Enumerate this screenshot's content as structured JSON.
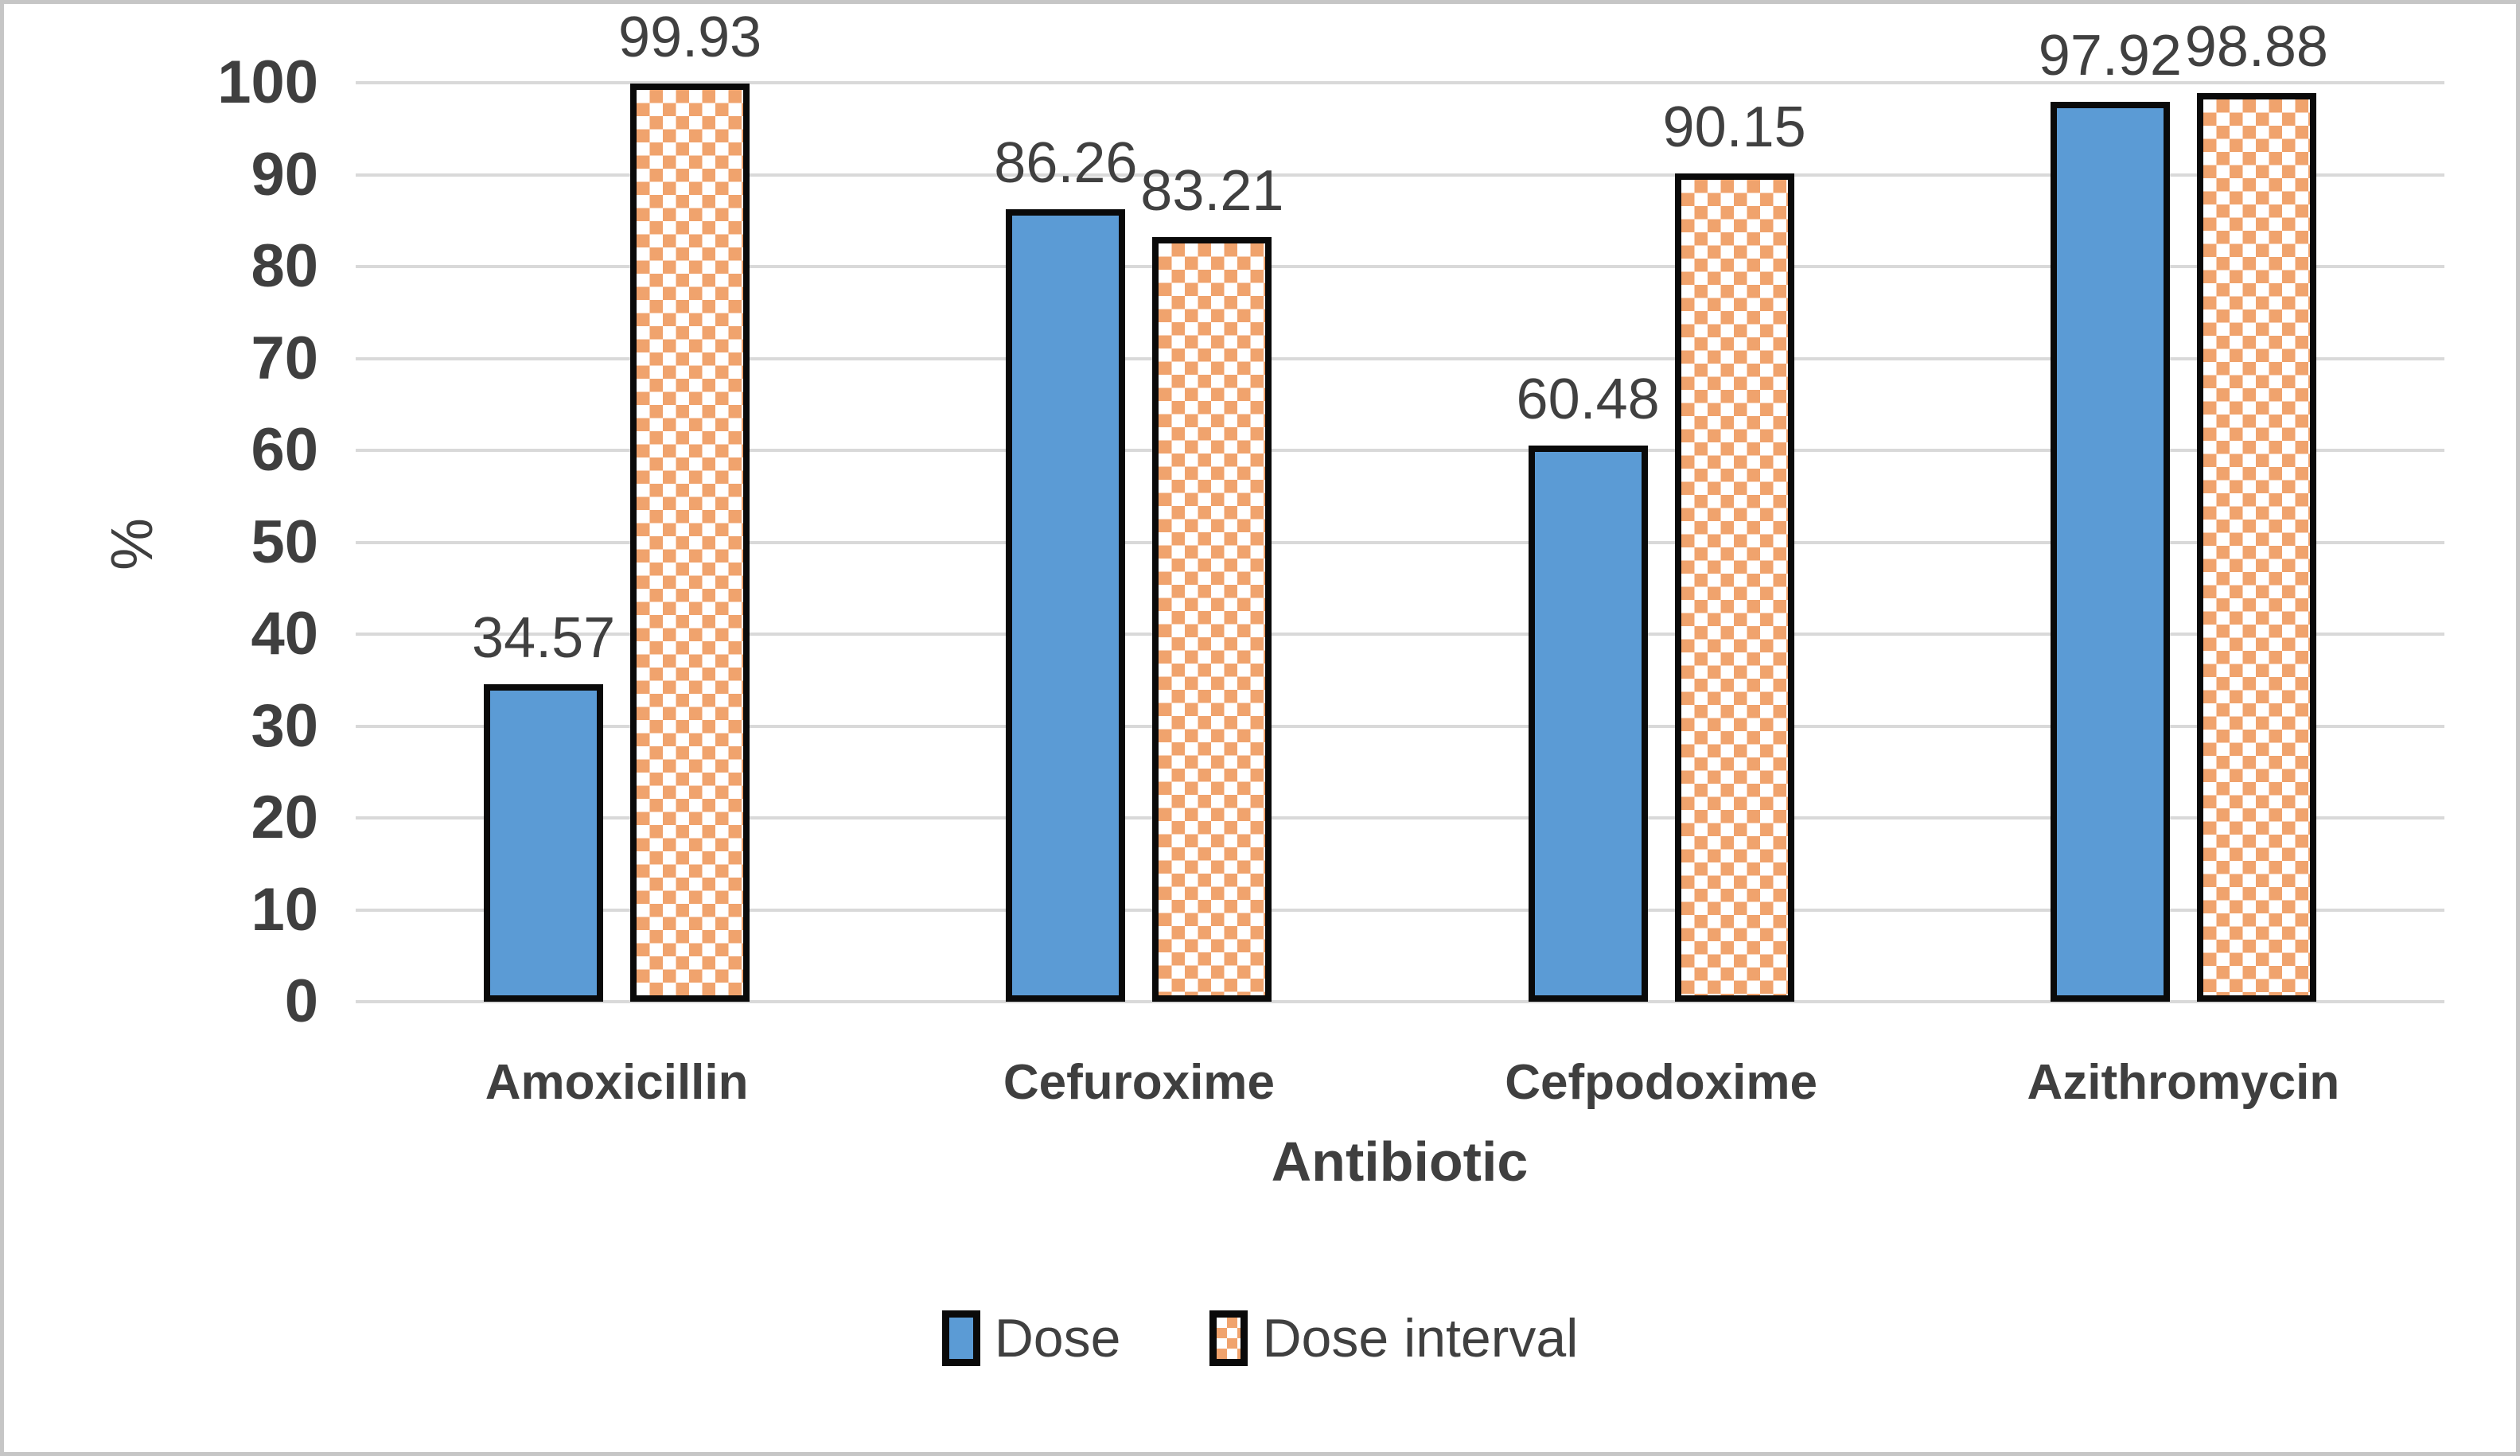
{
  "chart_data": {
    "type": "bar",
    "title": "",
    "categories": [
      "Amoxicillin",
      "Cefuroxime",
      "Cefpodoxime",
      "Azithromycin"
    ],
    "series": [
      {
        "name": "Dose",
        "pattern": "solid",
        "color": "#5B9BD5",
        "values": [
          34.57,
          86.26,
          60.48,
          97.92
        ]
      },
      {
        "name": "Dose interval",
        "pattern": "checker",
        "color": "#F0A36D",
        "values": [
          99.93,
          83.21,
          90.15,
          98.88
        ]
      }
    ],
    "data_labels": true,
    "xlabel": "Antibiotic",
    "ylabel": "%",
    "ylim": [
      0,
      100
    ],
    "yticks": [
      0,
      10,
      20,
      30,
      40,
      50,
      60,
      70,
      80,
      90,
      100
    ],
    "grid": true,
    "legend_position": "bottom",
    "colors": {
      "dose_fill": "#5B9BD5",
      "dose_interval_fill": "#F0A36D",
      "bar_border": "#0A0A0A",
      "gridline": "#D9D9D9",
      "text": "#3F3F3F",
      "frame_border": "#C6C6C6",
      "background": "#FFFFFF"
    }
  }
}
